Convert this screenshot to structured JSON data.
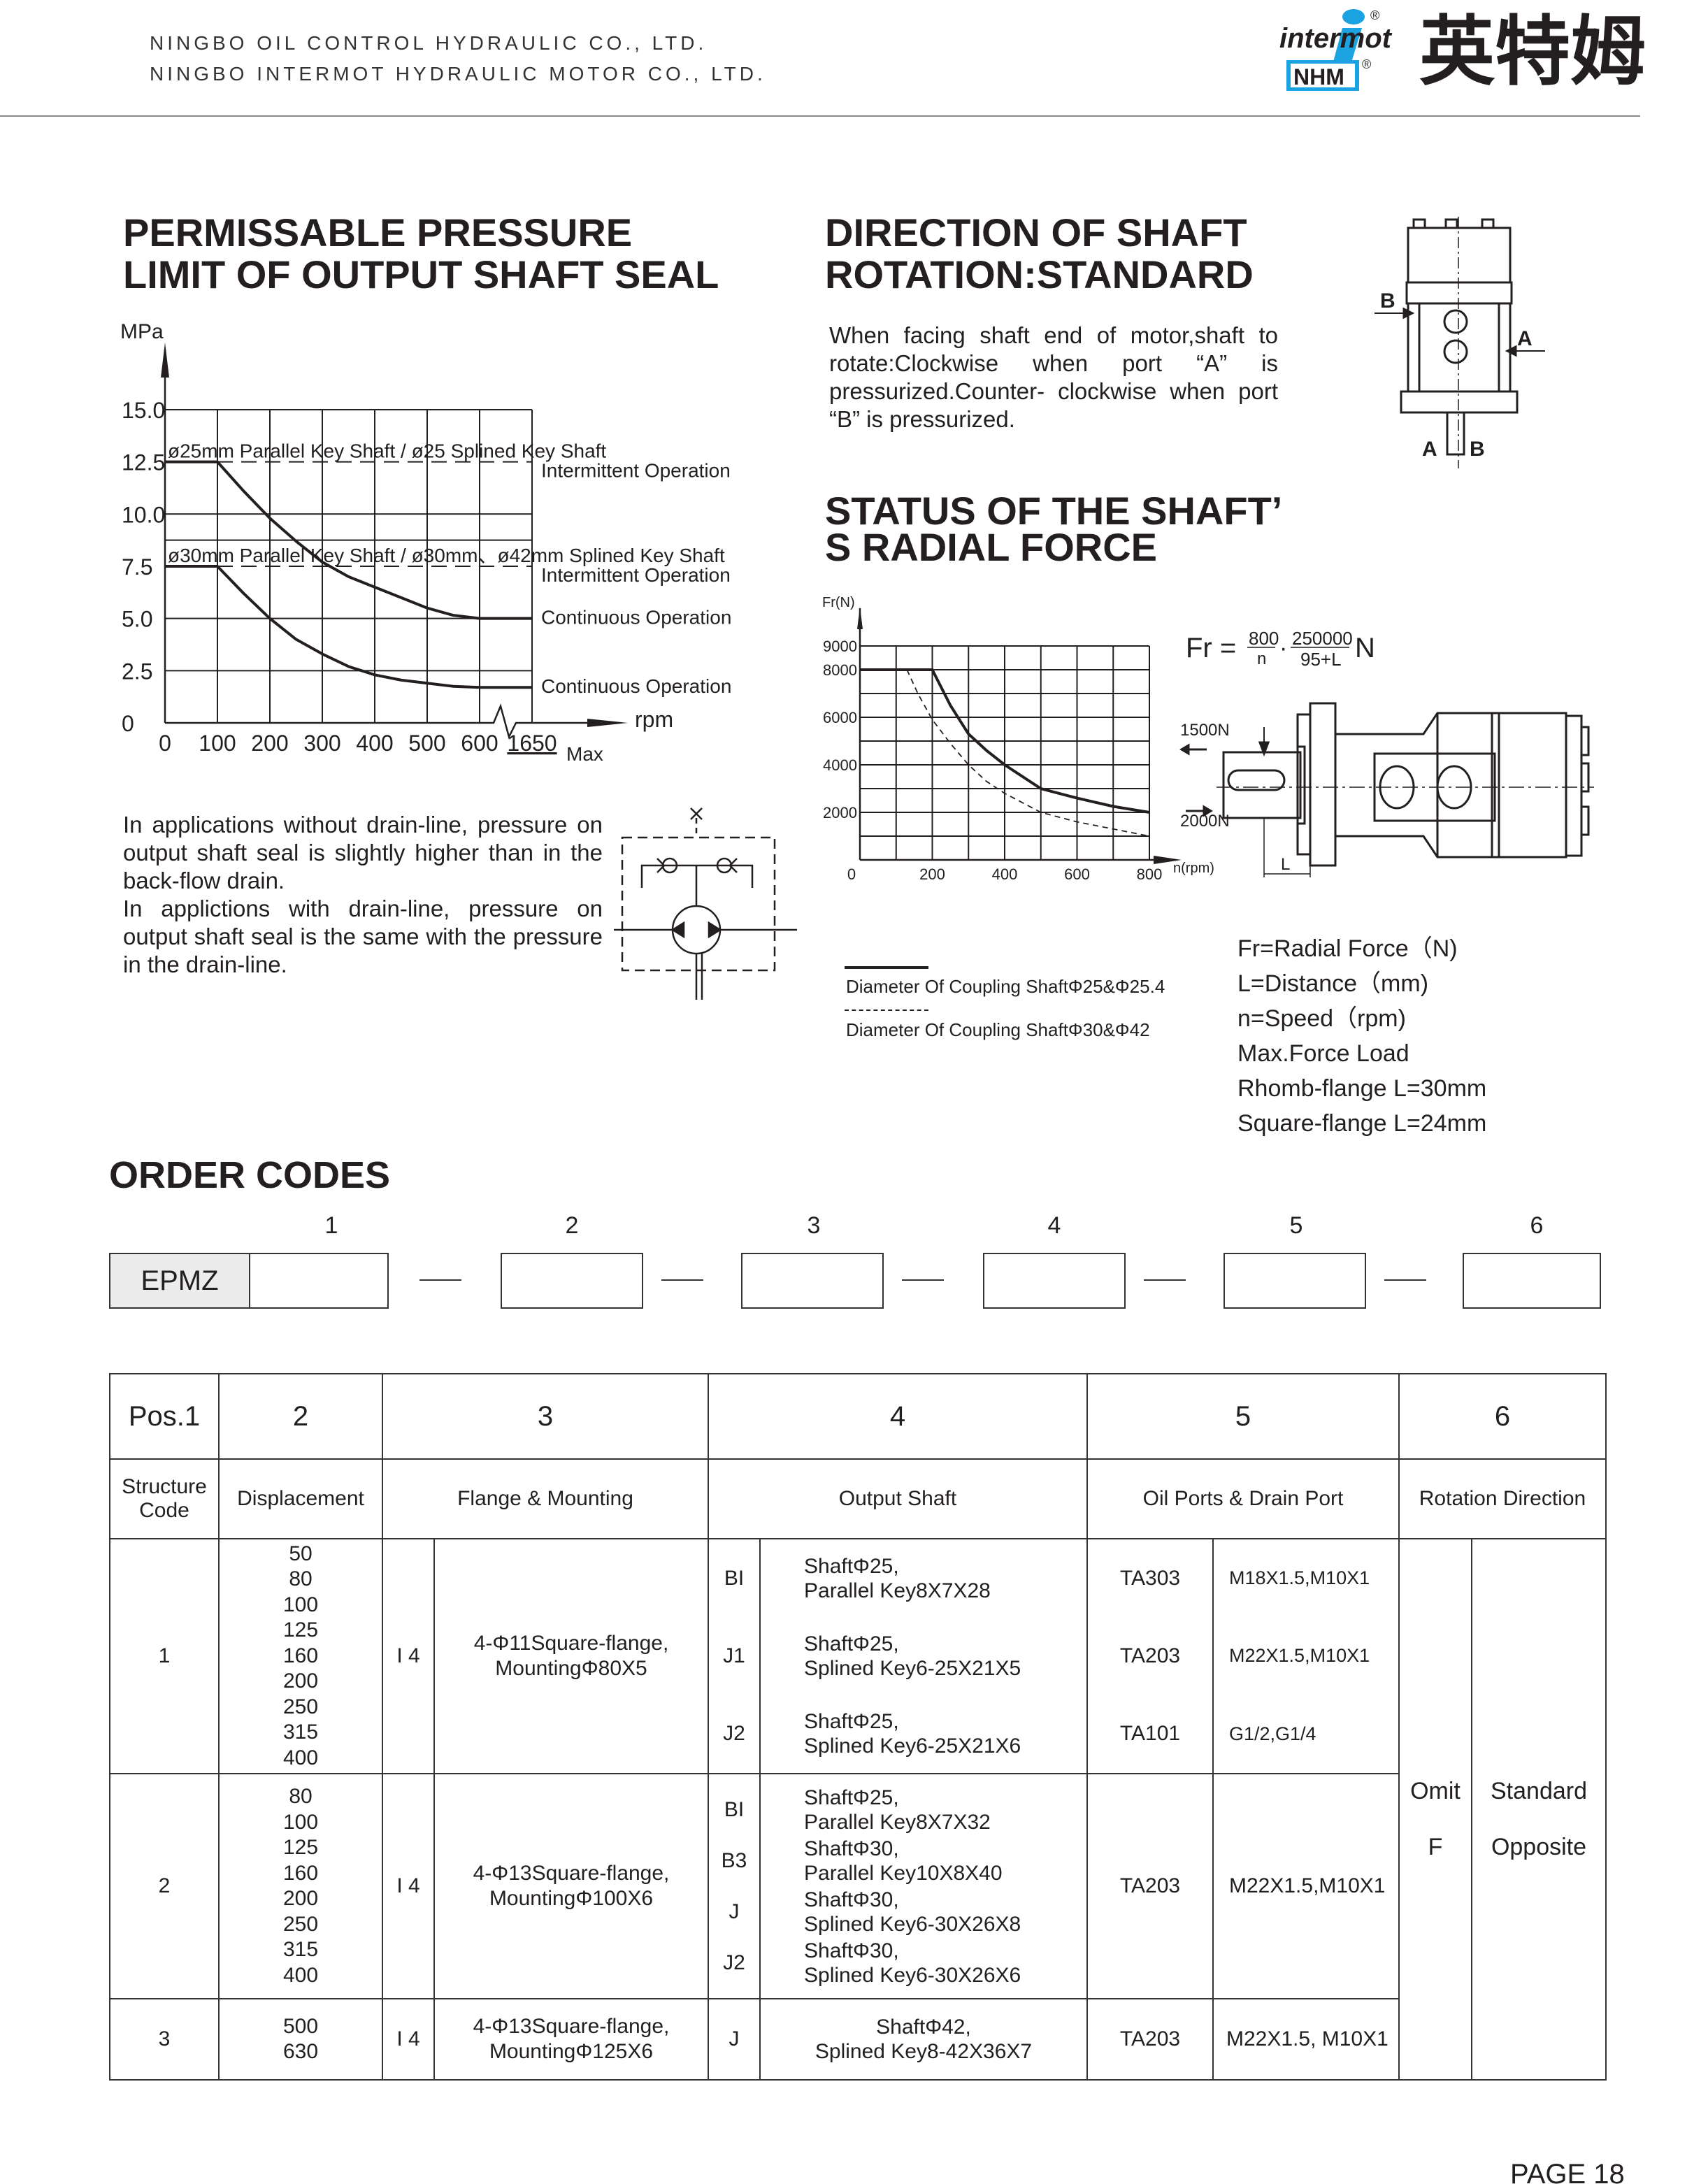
{
  "header": {
    "company_line1": "NINGBO OIL CONTROL HYDRAULIC CO., LTD.",
    "company_line2": "NINGBO INTERMOT HYDRAULIC MOTOR CO., LTD.",
    "logo": {
      "brand": "intermot",
      "sub": "NHM",
      "chinese": "英特姆",
      "registered": "®",
      "brand_color": "#1aa3e0"
    }
  },
  "pressure_section": {
    "title_line1": "PERMISSABLE PRESSURE",
    "title_line2": "LIMIT OF OUTPUT SHAFT SEAL",
    "description": "In applications without drain-line, pressure on output shaft seal is slightly higher than in the back-flow drain.\nIn applictions with drain-line, pressure on output shaft seal is the same with the pressure in the drain-line."
  },
  "direction_section": {
    "title_line1": "DIRECTION OF SHAFT",
    "title_line2": "ROTATION:STANDARD",
    "description": "When facing shaft end of motor,shaft to rotate:Clockwise when port “A” is pressurized.Counter- clockwise when port “B” is pressurized.",
    "port_labels": {
      "b_side": "B",
      "a_side": "A",
      "bottom_a": "A",
      "bottom_b": "B"
    }
  },
  "radial_section": {
    "title_line1": "STATUS OF THE SHAFT’",
    "title_line2": "S RADIAL FORCE",
    "formula": {
      "lhs": "Fr =",
      "num1": "800",
      "den1": "n",
      "dot": "·",
      "num2": "250000",
      "den2": "95+L",
      "unit": "N"
    },
    "drawing_labels": {
      "force_left": "1500N",
      "force_right": "2000N",
      "distance": "L"
    },
    "notes": [
      "Fr=Radial Force（N)",
      "L=Distance（mm)",
      "n=Speed（rpm)",
      "Max.Force Load",
      "Rhomb-flange L=30mm",
      "Square-flange L=24mm"
    ]
  },
  "order_codes": {
    "title": "ORDER CODES",
    "positions": [
      "1",
      "2",
      "3",
      "4",
      "5",
      "6"
    ],
    "prefix": "EPMZ",
    "table": {
      "header_positions": [
        "Pos.1",
        "2",
        "3",
        "4",
        "5",
        "6"
      ],
      "header_names": [
        "Structure Code",
        "Displacement",
        "Flange & Mounting",
        "Output Shaft",
        "Oil Ports & Drain Port",
        "Rotation Direction"
      ],
      "rows": [
        {
          "code": "1",
          "displacements": "50\n80\n100\n125\n160\n200\n250\n315\n400",
          "flange_code": "I 4",
          "flange": "4-Φ11Square-flange,\nMountingΦ80X5",
          "shafts": [
            {
              "code": "BI",
              "desc": "ShaftΦ25,\nParallel Key8X7X28"
            },
            {
              "code": "J1",
              "desc": "ShaftΦ25,\nSplined Key6-25X21X5"
            },
            {
              "code": "J2",
              "desc": "ShaftΦ25,\nSplined Key6-25X21X6"
            }
          ],
          "ports": [
            {
              "code": "TA303",
              "thread": "M18X1.5,M10X1"
            },
            {
              "code": "TA203",
              "thread": "M22X1.5,M10X1"
            },
            {
              "code": "TA101",
              "thread": "G1/2,G1/4"
            }
          ]
        },
        {
          "code": "2",
          "displacements": "80\n100\n125\n160\n200\n250\n315\n400",
          "flange_code": "I 4",
          "flange": "4-Φ13Square-flange,\nMountingΦ100X6",
          "shafts": [
            {
              "code": "BI",
              "desc": "ShaftΦ25,\nParallel Key8X7X32"
            },
            {
              "code": "B3",
              "desc": "ShaftΦ30,\nParallel Key10X8X40"
            },
            {
              "code": "J",
              "desc": "ShaftΦ30,\nSplined Key6-30X26X8"
            },
            {
              "code": "J2",
              "desc": "ShaftΦ30,\nSplined Key6-30X26X6"
            }
          ],
          "ports": [
            {
              "code": "TA203",
              "thread": "M22X1.5,M10X1"
            }
          ]
        },
        {
          "code": "3",
          "displacements": "500\n630",
          "flange_code": "I 4",
          "flange": "4-Φ13Square-flange,\nMountingΦ125X6",
          "shafts": [
            {
              "code": "J",
              "desc": "ShaftΦ42,\nSplined Key8-42X36X7"
            }
          ],
          "ports": [
            {
              "code": "TA203",
              "thread": "M22X1.5, M10X1"
            }
          ]
        }
      ],
      "rotation": {
        "codes": "Omit\nF",
        "names": "Standard\nOpposite"
      }
    }
  },
  "footer": {
    "page": "PAGE 18"
  },
  "chart_data": [
    {
      "type": "line",
      "ylabel": "MPa",
      "xlabel": "rpm",
      "x_max_label": "Max",
      "x_ticks": [
        0,
        100,
        200,
        300,
        400,
        500,
        600,
        1650
      ],
      "x_tick_labels": [
        "0",
        "100",
        "200",
        "300",
        "400",
        "500",
        "600",
        "1650"
      ],
      "y_ticks": [
        0,
        2.5,
        5.0,
        7.5,
        10.0,
        12.5,
        15.0
      ],
      "y_tick_labels": [
        "0",
        "2.5",
        "5.0",
        "7.5",
        "10.0",
        "12.5",
        "15.0"
      ],
      "ylim": [
        0,
        15
      ],
      "grid": true,
      "axis_break": "between 600 and 1650",
      "series": [
        {
          "name": "ø25mm Parallel Key Shaft / ø25 Splined Key Shaft",
          "intermittent_label": "Intermittent Operation",
          "intermittent_value": 12.5,
          "continuous_label": "Continuous Operation",
          "x": [
            0,
            100,
            150,
            200,
            250,
            300,
            350,
            400,
            450,
            500,
            550,
            600,
            1650
          ],
          "y": [
            12.5,
            12.5,
            11.1,
            9.8,
            8.7,
            7.7,
            7.0,
            6.5,
            6.0,
            5.5,
            5.15,
            5.0,
            5.0
          ]
        },
        {
          "name": "ø30mm Parallel Key Shaft / ø30mm、ø42mm Splined Key Shaft",
          "intermittent_label": "Intermittent Operation",
          "intermittent_value": 7.5,
          "continuous_label": "Continuous Operation",
          "x": [
            0,
            100,
            150,
            200,
            250,
            300,
            350,
            400,
            450,
            500,
            550,
            600,
            1650
          ],
          "y": [
            7.5,
            7.5,
            6.2,
            5.0,
            4.0,
            3.3,
            2.7,
            2.3,
            2.05,
            1.9,
            1.75,
            1.7,
            1.7
          ]
        }
      ]
    },
    {
      "type": "line",
      "ylabel": "Fr(N)",
      "xlabel": "n(rpm)",
      "x_ticks": [
        0,
        200,
        400,
        600,
        800
      ],
      "x_tick_labels": [
        "0",
        "200",
        "400",
        "600",
        "800"
      ],
      "y_ticks": [
        2000,
        4000,
        6000,
        8000,
        9000
      ],
      "y_tick_labels": [
        "2000",
        "4000",
        "6000",
        "8000",
        "9000"
      ],
      "xlim": [
        0,
        800
      ],
      "ylim": [
        0,
        9000
      ],
      "grid": true,
      "series": [
        {
          "name": "Diameter Of Coupling ShaftΦ25&Φ25.4",
          "style": "solid",
          "x": [
            0,
            200,
            250,
            300,
            350,
            400,
            500,
            600,
            700,
            800
          ],
          "y": [
            8000,
            8000,
            6500,
            5300,
            4600,
            4000,
            3000,
            2600,
            2250,
            2000
          ]
        },
        {
          "name": "Diameter Of Coupling ShaftΦ30&Φ42",
          "style": "dashed",
          "x": [
            130,
            160,
            200,
            250,
            300,
            350,
            400,
            500,
            600,
            700,
            800
          ],
          "y": [
            8000,
            7000,
            5900,
            4900,
            4000,
            3300,
            2800,
            2000,
            1600,
            1300,
            1000
          ]
        }
      ]
    }
  ]
}
